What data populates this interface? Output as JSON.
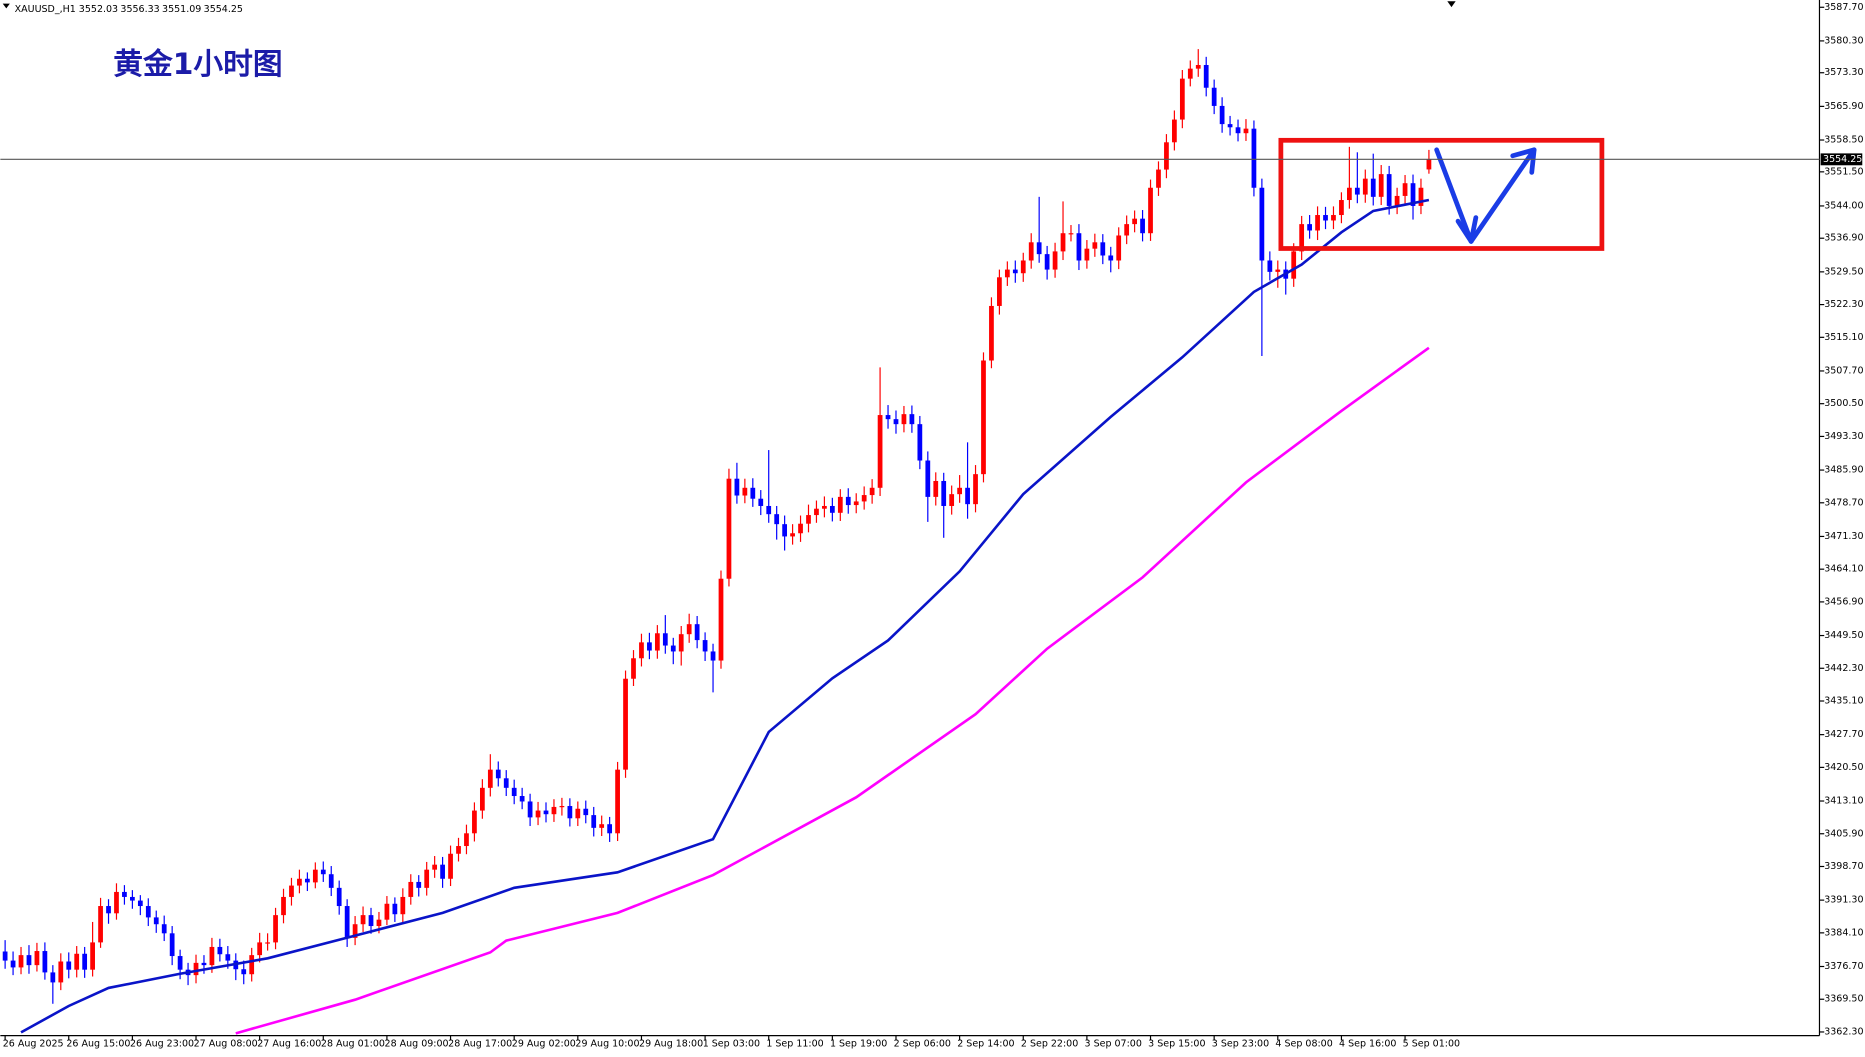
{
  "chart_data": {
    "type": "candlestick",
    "title": "黄金1小时图",
    "symbol": "XAUUSD_,H1",
    "open": [
      3380.0,
      3378.0,
      3376.5,
      3379.2,
      3377.0,
      3380.1,
      3375.4,
      3373.2,
      3377.8,
      3376.0,
      3379.5,
      3376.0,
      3382.0,
      3390.0,
      3388.4,
      3393.1,
      3392.0,
      3391.2,
      3390.0,
      3387.5,
      3386.0,
      3384.0,
      3379.0,
      3376.0,
      3374.8,
      3377.5,
      3377.0,
      3381.0,
      3379.4,
      3378.0,
      3376.1,
      3375.0,
      3379.2,
      3382.0,
      3382.0,
      3388.0,
      3392.0,
      3394.5,
      3396.0,
      3395.2,
      3398.0,
      3397.0,
      3394.0,
      3390.0,
      3383.0,
      3386.0,
      3388.0,
      3385.6,
      3387.0,
      3390.5,
      3388.2,
      3392.0,
      3395.3,
      3394.0,
      3398.0,
      3399.1,
      3396.0,
      3401.5,
      3403.2,
      3406.0,
      3411.0,
      3416.0,
      3420.0,
      3418.1,
      3416.0,
      3414.2,
      3413.0,
      3409.5,
      3411.0,
      3410.2,
      3411.8,
      3412.0,
      3409.3,
      3411.4,
      3410.0,
      3407.2,
      3408.0,
      3406.0,
      3420.0,
      3440.0,
      3444.5,
      3448.0,
      3446.2,
      3450.0,
      3447.3,
      3446.0,
      3449.8,
      3452.0,
      3448.5,
      3446.0,
      3444.0,
      3462.0,
      3484.0,
      3480.3,
      3482.0,
      3479.6,
      3478.0,
      3476.2,
      3474.0,
      3471.3,
      3472.0,
      3474.1,
      3476.0,
      3477.4,
      3478.0,
      3476.5,
      3480.0,
      3478.2,
      3479.0,
      3480.4,
      3482.0,
      3498.0,
      3497.1,
      3496.0,
      3498.2,
      3496.0,
      3488.0,
      3480.0,
      3483.5,
      3478.0,
      3480.6,
      3482.0,
      3478.4,
      3485.0,
      3510.0,
      3522.0,
      3528.3,
      3530.0,
      3529.2,
      3532.0,
      3536.0,
      3533.4,
      3530.0,
      3534.0,
      3538.0,
      3538.0,
      3532.0,
      3534.6,
      3536.0,
      3533.1,
      3532.0,
      3537.5,
      3540.0,
      3541.2,
      3538.0,
      3548.0,
      3552.0,
      3558.0,
      3563.0,
      3572.0,
      3574.2,
      3575.0,
      3570.0,
      3566.0,
      3562.0,
      3561.3,
      3560.0,
      3561.0,
      3548.0,
      3532.0,
      3529.5,
      3530.0,
      3528.0,
      3534.0,
      3540.0,
      3538.6,
      3542.0,
      3540.8,
      3542.0,
      3545.3,
      3548.0,
      3546.5,
      3550.0,
      3546.0,
      3551.0,
      3544.0,
      3546.2,
      3549.0,
      3544.0,
      3552.03
    ],
    "high": [
      3382.5,
      3380.0,
      3381.0,
      3381.4,
      3381.9,
      3382.0,
      3377.0,
      3379.6,
      3379.8,
      3381.2,
      3381.0,
      3386.5,
      3391.8,
      3391.5,
      3395.0,
      3394.6,
      3393.5,
      3392.4,
      3391.7,
      3389.0,
      3387.9,
      3385.6,
      3380.4,
      3377.5,
      3379.3,
      3379.2,
      3383.0,
      3382.8,
      3381.2,
      3379.6,
      3378.0,
      3380.8,
      3384.1,
      3384.0,
      3389.6,
      3393.8,
      3396.2,
      3398.0,
      3397.4,
      3399.6,
      3399.8,
      3398.8,
      3395.6,
      3391.5,
      3387.8,
      3389.9,
      3389.6,
      3388.7,
      3392.2,
      3391.9,
      3393.9,
      3397.0,
      3396.8,
      3399.7,
      3401.0,
      3400.8,
      3403.3,
      3405.0,
      3407.9,
      3412.8,
      3417.9,
      3423.4,
      3421.8,
      3419.9,
      3417.8,
      3416.0,
      3414.7,
      3412.9,
      3412.8,
      3413.5,
      3413.8,
      3413.7,
      3413.0,
      3413.2,
      3411.8,
      3409.9,
      3409.6,
      3421.7,
      3441.8,
      3446.3,
      3449.9,
      3450.1,
      3451.8,
      3454.0,
      3449.0,
      3451.6,
      3454.3,
      3453.8,
      3450.2,
      3447.7,
      3463.8,
      3486.2,
      3487.5,
      3484.0,
      3484.1,
      3481.5,
      3490.3,
      3478.0,
      3475.9,
      3474.0,
      3475.9,
      3478.3,
      3479.2,
      3480.1,
      3479.8,
      3481.7,
      3481.9,
      3480.8,
      3482.3,
      3483.9,
      3508.5,
      3500.2,
      3499.0,
      3500.0,
      3500.1,
      3497.8,
      3490.0,
      3485.4,
      3485.3,
      3482.5,
      3484.8,
      3492.0,
      3487.0,
      3511.8,
      3523.9,
      3530.0,
      3531.8,
      3532.0,
      3533.7,
      3538.0,
      3546.0,
      3535.2,
      3535.9,
      3545.0,
      3539.8,
      3540.0,
      3536.5,
      3537.9,
      3537.8,
      3535.0,
      3539.3,
      3541.9,
      3543.0,
      3543.1,
      3549.8,
      3553.8,
      3559.8,
      3565.0,
      3573.9,
      3576.0,
      3578.5,
      3576.8,
      3571.8,
      3567.9,
      3563.8,
      3563.0,
      3563.1,
      3562.8,
      3550.0,
      3534.0,
      3532.0,
      3531.8,
      3535.8,
      3541.8,
      3542.0,
      3543.9,
      3543.8,
      3543.9,
      3547.0,
      3557.0,
      3555.8,
      3552.0,
      3555.5,
      3553.0,
      3552.8,
      3548.0,
      3550.8,
      3550.9,
      3550.0,
      3556.33
    ],
    "low": [
      3376.2,
      3374.8,
      3375.0,
      3375.1,
      3375.6,
      3373.8,
      3368.5,
      3371.5,
      3374.1,
      3374.3,
      3374.2,
      3374.5,
      3380.8,
      3386.1,
      3387.0,
      3390.3,
      3389.4,
      3388.0,
      3385.6,
      3384.1,
      3382.3,
      3377.0,
      3373.9,
      3372.6,
      3373.0,
      3375.1,
      3375.3,
      3377.8,
      3376.2,
      3373.7,
      3372.8,
      3373.4,
      3377.6,
      3380.2,
      3380.5,
      3386.2,
      3390.1,
      3392.8,
      3393.3,
      3393.9,
      3395.3,
      3392.2,
      3388.1,
      3381.0,
      3381.4,
      3384.3,
      3383.9,
      3384.0,
      3385.8,
      3386.5,
      3386.4,
      3390.3,
      3392.1,
      3392.3,
      3396.2,
      3394.0,
      3394.4,
      3399.8,
      3401.4,
      3404.2,
      3409.2,
      3414.1,
      3416.3,
      3414.2,
      3412.4,
      3411.3,
      3407.6,
      3407.8,
      3408.4,
      3408.5,
      3409.9,
      3407.5,
      3407.6,
      3408.2,
      3405.3,
      3405.4,
      3404.1,
      3404.3,
      3418.2,
      3438.4,
      3442.7,
      3444.3,
      3444.4,
      3445.5,
      3443.2,
      3442.9,
      3447.9,
      3446.7,
      3443.9,
      3437.0,
      3442.2,
      3460.3,
      3478.5,
      3478.6,
      3477.8,
      3476.0,
      3474.3,
      3470.6,
      3468.2,
      3469.5,
      3470.1,
      3472.2,
      3474.3,
      3475.5,
      3474.6,
      3474.7,
      3476.3,
      3476.4,
      3477.2,
      3478.5,
      3480.2,
      3495.0,
      3493.9,
      3494.2,
      3494.1,
      3486.1,
      3474.5,
      3478.1,
      3471.0,
      3476.1,
      3478.7,
      3475.2,
      3476.6,
      3483.2,
      3508.3,
      3520.1,
      3526.4,
      3527.1,
      3527.3,
      3530.2,
      3531.5,
      3527.8,
      3528.2,
      3532.1,
      3536.2,
      3529.9,
      3530.2,
      3532.8,
      3531.2,
      3529.4,
      3530.1,
      3535.6,
      3538.2,
      3536.2,
      3536.3,
      3546.2,
      3550.1,
      3556.2,
      3561.1,
      3570.3,
      3572.4,
      3568.1,
      3564.2,
      3560.1,
      3559.5,
      3558.2,
      3558.3,
      3546.1,
      3511.0,
      3527.6,
      3526.0,
      3524.5,
      3526.2,
      3532.1,
      3536.8,
      3536.5,
      3538.9,
      3538.9,
      3540.2,
      3543.4,
      3544.6,
      3544.7,
      3544.1,
      3544.2,
      3542.1,
      3542.2,
      3544.3,
      3541.0,
      3542.2,
      3551.09
    ],
    "close": [
      3378.0,
      3376.5,
      3379.2,
      3377.0,
      3380.1,
      3375.4,
      3373.2,
      3377.8,
      3376.0,
      3379.5,
      3376.0,
      3382.0,
      3390.0,
      3388.4,
      3393.1,
      3392.0,
      3391.2,
      3390.0,
      3387.5,
      3386.0,
      3384.0,
      3379.0,
      3376.0,
      3374.8,
      3377.5,
      3377.0,
      3381.0,
      3379.4,
      3378.0,
      3376.1,
      3375.0,
      3379.2,
      3382.0,
      3382.0,
      3388.0,
      3392.0,
      3394.5,
      3396.0,
      3395.2,
      3398.0,
      3397.0,
      3394.0,
      3390.0,
      3383.0,
      3386.0,
      3388.0,
      3385.6,
      3387.0,
      3390.5,
      3388.2,
      3392.0,
      3395.3,
      3394.0,
      3398.0,
      3399.1,
      3396.0,
      3401.5,
      3403.2,
      3406.0,
      3411.0,
      3416.0,
      3420.0,
      3418.1,
      3416.0,
      3414.2,
      3413.0,
      3409.5,
      3411.0,
      3410.2,
      3411.8,
      3412.0,
      3409.3,
      3411.4,
      3410.0,
      3407.2,
      3408.0,
      3406.0,
      3420.0,
      3440.0,
      3444.5,
      3448.0,
      3446.2,
      3450.0,
      3447.3,
      3446.0,
      3449.8,
      3452.0,
      3448.5,
      3446.0,
      3444.0,
      3462.0,
      3484.0,
      3480.3,
      3482.0,
      3479.6,
      3478.0,
      3476.2,
      3474.0,
      3471.3,
      3472.0,
      3474.1,
      3476.0,
      3477.4,
      3478.0,
      3476.5,
      3480.0,
      3478.2,
      3479.0,
      3480.4,
      3482.0,
      3498.0,
      3497.1,
      3496.0,
      3498.2,
      3496.0,
      3488.0,
      3480.0,
      3483.5,
      3478.0,
      3480.6,
      3482.0,
      3478.4,
      3485.0,
      3510.0,
      3522.0,
      3528.3,
      3530.0,
      3529.2,
      3532.0,
      3536.0,
      3533.4,
      3530.0,
      3534.0,
      3538.0,
      3538.0,
      3532.0,
      3534.6,
      3536.0,
      3533.1,
      3532.0,
      3537.5,
      3540.0,
      3541.2,
      3538.0,
      3548.0,
      3552.0,
      3558.0,
      3563.0,
      3572.0,
      3574.2,
      3575.0,
      3570.0,
      3566.0,
      3562.0,
      3561.3,
      3560.0,
      3561.0,
      3548.0,
      3532.0,
      3529.5,
      3530.0,
      3528.0,
      3534.0,
      3540.0,
      3538.6,
      3542.0,
      3540.8,
      3542.0,
      3545.3,
      3548.0,
      3546.5,
      3550.0,
      3546.0,
      3551.0,
      3544.0,
      3546.2,
      3549.0,
      3544.0,
      3548.0,
      3554.25
    ],
    "bull_color": "#ff0000",
    "bear_color": "#0000ff",
    "series": [
      {
        "color": "#0a14c8",
        "x": [
          2,
          8,
          13,
          22,
          33,
          44,
          55,
          64,
          77,
          89,
          96,
          104,
          111,
          120,
          128,
          139,
          148,
          157,
          163,
          168,
          172,
          179
        ],
        "values": [
          3362.2,
          3368.0,
          3372.0,
          3375.1,
          3378.5,
          3383.5,
          3388.5,
          3394.0,
          3397.4,
          3404.7,
          3428.3,
          3440.1,
          3448.4,
          3463.6,
          3480.6,
          3497.6,
          3510.7,
          3525.1,
          3531.1,
          3538.2,
          3542.9,
          3545.3
        ]
      },
      {
        "color": "#ff00ff",
        "x": [
          29,
          44,
          61,
          63,
          77,
          89,
          107,
          122,
          131,
          143,
          156,
          168,
          179
        ],
        "values": [
          3362.0,
          3369.4,
          3379.8,
          3382.4,
          3388.5,
          3396.8,
          3413.9,
          3432.2,
          3446.6,
          3462.3,
          3483.2,
          3498.9,
          3512.8
        ]
      }
    ],
    "bid": 3554.25,
    "xlim": [
      -0.6,
      228.1
    ],
    "xticks": [
      {
        "value": 0,
        "label": "26 Aug 2025"
      },
      {
        "value": 8,
        "label": "26 Aug 15:00"
      },
      {
        "value": 16,
        "label": "26 Aug 23:00"
      },
      {
        "value": 24,
        "label": "27 Aug 08:00"
      },
      {
        "value": 32,
        "label": "27 Aug 16:00"
      },
      {
        "value": 40,
        "label": "28 Aug 01:00"
      },
      {
        "value": 48,
        "label": "28 Aug 09:00"
      },
      {
        "value": 56,
        "label": "28 Aug 17:00"
      },
      {
        "value": 64,
        "label": "29 Aug 02:00"
      },
      {
        "value": 72,
        "label": "29 Aug 10:00"
      },
      {
        "value": 80,
        "label": "29 Aug 18:00"
      },
      {
        "value": 88,
        "label": "1 Sep 03:00"
      },
      {
        "value": 96,
        "label": "1 Sep 11:00"
      },
      {
        "value": 104,
        "label": "1 Sep 19:00"
      },
      {
        "value": 112,
        "label": "2 Sep 06:00"
      },
      {
        "value": 120,
        "label": "2 Sep 14:00"
      },
      {
        "value": 128,
        "label": "2 Sep 22:00"
      },
      {
        "value": 136,
        "label": "3 Sep 07:00"
      },
      {
        "value": 144,
        "label": "3 Sep 15:00"
      },
      {
        "value": 152,
        "label": "3 Sep 23:00"
      },
      {
        "value": 160,
        "label": "4 Sep 08:00"
      },
      {
        "value": 168,
        "label": "4 Sep 16:00"
      },
      {
        "value": 176,
        "label": "5 Sep 01:00"
      }
    ],
    "ylim": [
      3361.5,
      3589.3
    ],
    "yticks": [
      {
        "value": 3587.7,
        "label": "3587.70"
      },
      {
        "value": 3580.3,
        "label": "3580.30"
      },
      {
        "value": 3573.3,
        "label": "3573.30"
      },
      {
        "value": 3565.9,
        "label": "3565.90"
      },
      {
        "value": 3558.5,
        "label": "3558.50"
      },
      {
        "value": 3551.5,
        "label": "3551.50"
      },
      {
        "value": 3544,
        "label": "3544.00"
      },
      {
        "value": 3536.9,
        "label": "3536.90"
      },
      {
        "value": 3529.5,
        "label": "3529.50"
      },
      {
        "value": 3522.3,
        "label": "3522.30"
      },
      {
        "value": 3515.1,
        "label": "3515.10"
      },
      {
        "value": 3507.7,
        "label": "3507.70"
      },
      {
        "value": 3500.5,
        "label": "3500.50"
      },
      {
        "value": 3493.3,
        "label": "3493.30"
      },
      {
        "value": 3485.9,
        "label": "3485.90"
      },
      {
        "value": 3478.7,
        "label": "3478.70"
      },
      {
        "value": 3471.3,
        "label": "3471.30"
      },
      {
        "value": 3464.1,
        "label": "3464.10"
      },
      {
        "value": 3456.9,
        "label": "3456.90"
      },
      {
        "value": 3449.5,
        "label": "3449.50"
      },
      {
        "value": 3442.3,
        "label": "3442.30"
      },
      {
        "value": 3435.1,
        "label": "3435.10"
      },
      {
        "value": 3427.7,
        "label": "3427.70"
      },
      {
        "value": 3420.5,
        "label": "3420.50"
      },
      {
        "value": 3413.1,
        "label": "3413.10"
      },
      {
        "value": 3405.9,
        "label": "3405.90"
      },
      {
        "value": 3398.7,
        "label": "3398.70"
      },
      {
        "value": 3391.3,
        "label": "3391.30"
      },
      {
        "value": 3384.1,
        "label": "3384.10"
      },
      {
        "value": 3376.7,
        "label": "3376.70"
      },
      {
        "value": 3369.5,
        "label": "3369.50"
      },
      {
        "value": 3362.3,
        "label": "3362.30"
      }
    ]
  }
}
